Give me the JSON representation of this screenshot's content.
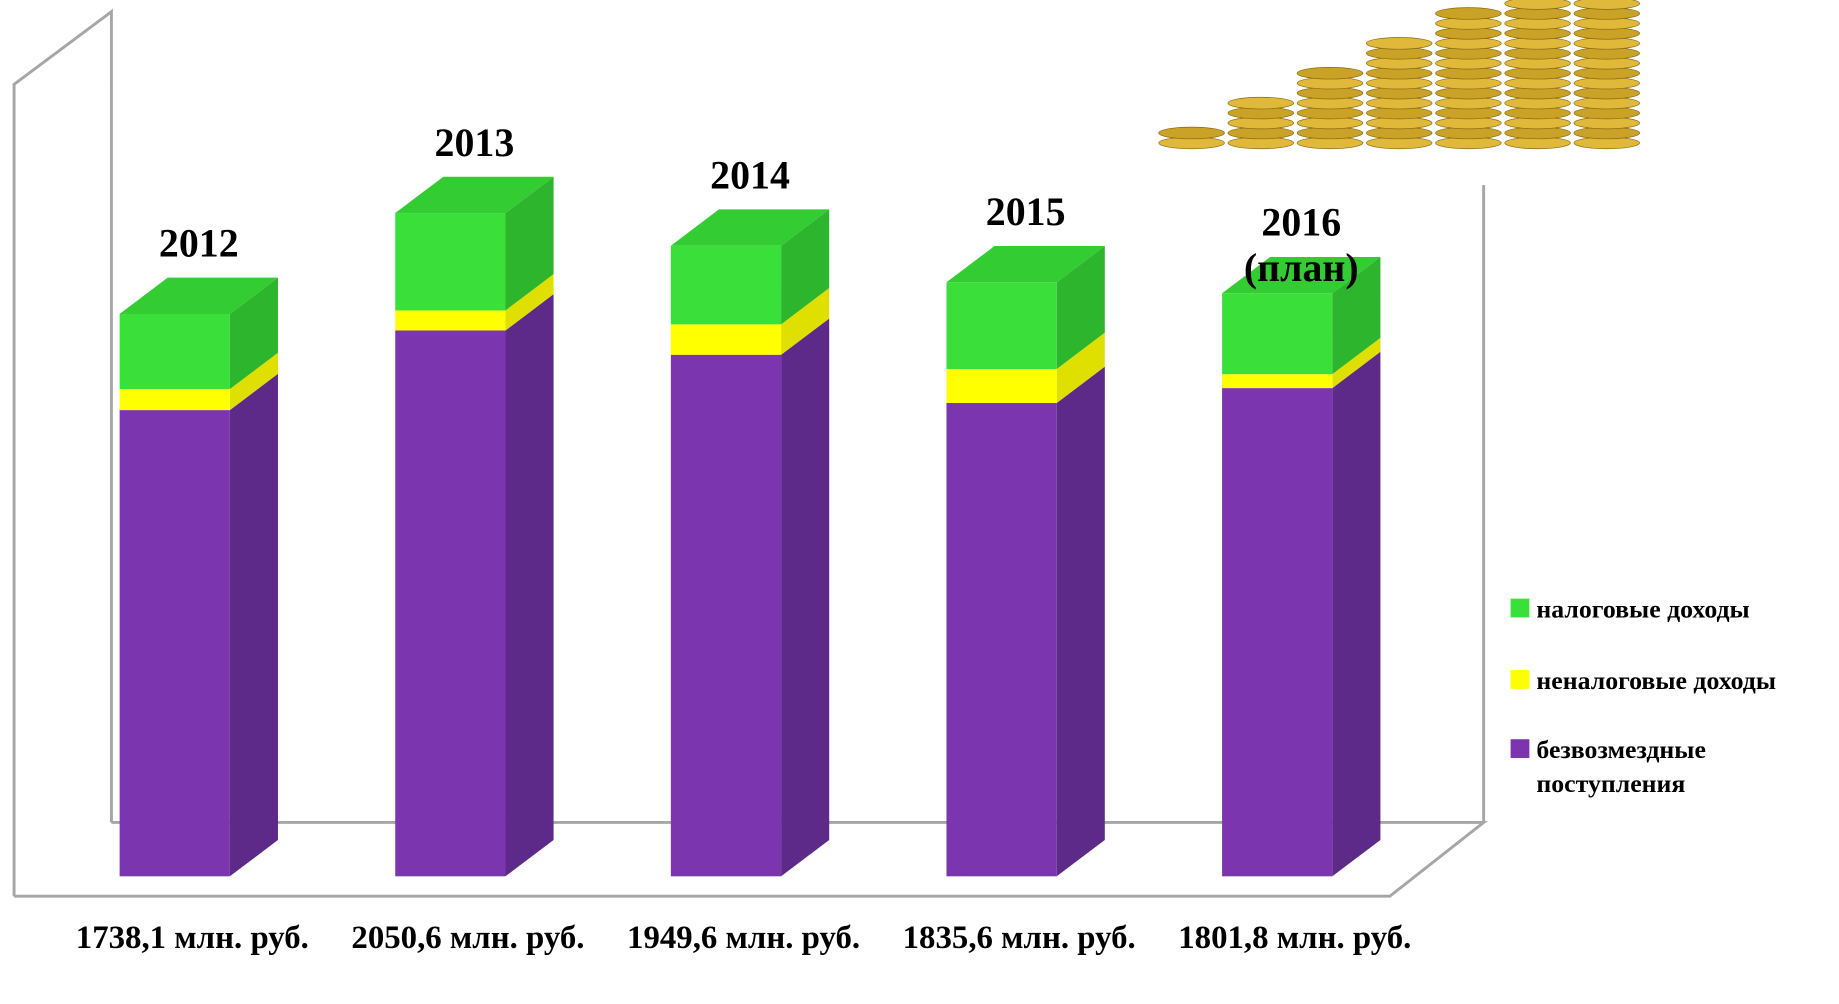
{
  "chart_data": {
    "type": "bar3d-stacked",
    "categories": [
      "2012",
      "2013",
      "2014",
      "2015",
      "2016 (план)"
    ],
    "total_labels": [
      "1738,1 млн. руб.",
      "2050,6 млн. руб.",
      "1949,6 млн. руб.",
      "1835,6 млн. руб.",
      "1801,8 млн. руб."
    ],
    "series": [
      {
        "name": "безвозмездные поступления",
        "color": "#7b35af",
        "side_color": "#5e2a8a",
        "values": [
          1441,
          1687,
          1612,
          1463,
          1509
        ]
      },
      {
        "name": "неналоговые доходы",
        "color": "#ffff00",
        "side_color": "#e0e000",
        "values": [
          65,
          62,
          94,
          105,
          43
        ]
      },
      {
        "name": "налоговые доходы",
        "color": "#3adf3a",
        "side_color": "#2db52d",
        "values": [
          232,
          301,
          243,
          268,
          250
        ]
      }
    ],
    "ymax": 1738.1
  }
}
